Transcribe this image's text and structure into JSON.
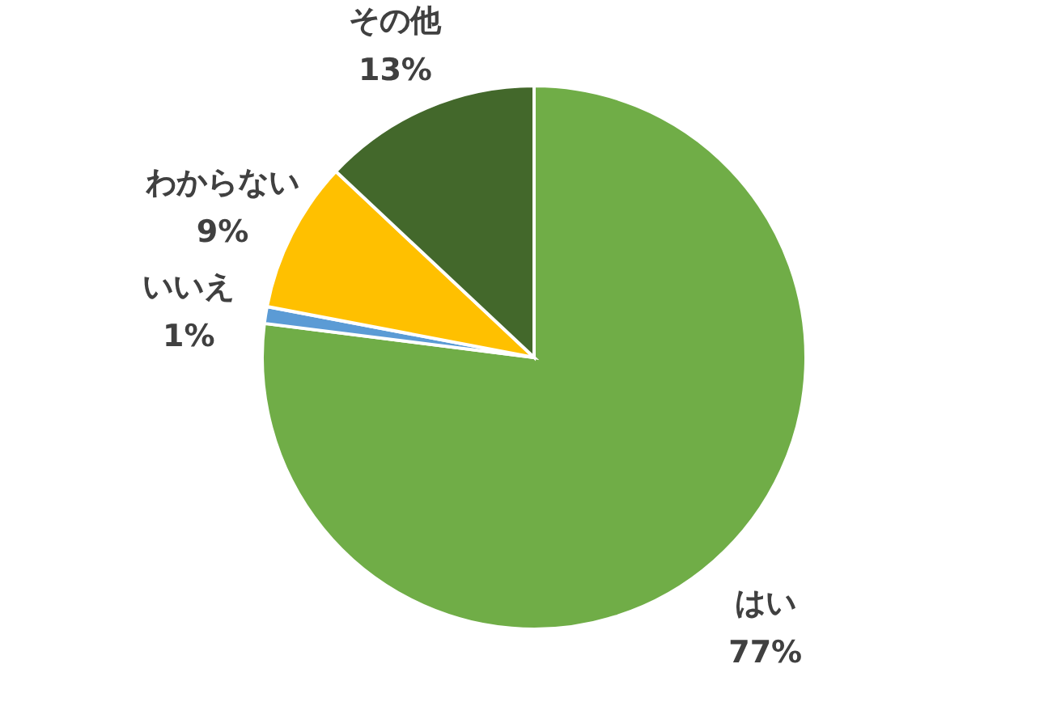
{
  "chart_data": {
    "type": "pie",
    "categories": [
      "はい",
      "いいえ",
      "わからない",
      "その他"
    ],
    "values": [
      77,
      1,
      9,
      13
    ],
    "colors": [
      "#70ad47",
      "#5b9bd5",
      "#ffc000",
      "#43682b"
    ],
    "value_labels": [
      "77%",
      "1%",
      "9%",
      "13%"
    ]
  }
}
